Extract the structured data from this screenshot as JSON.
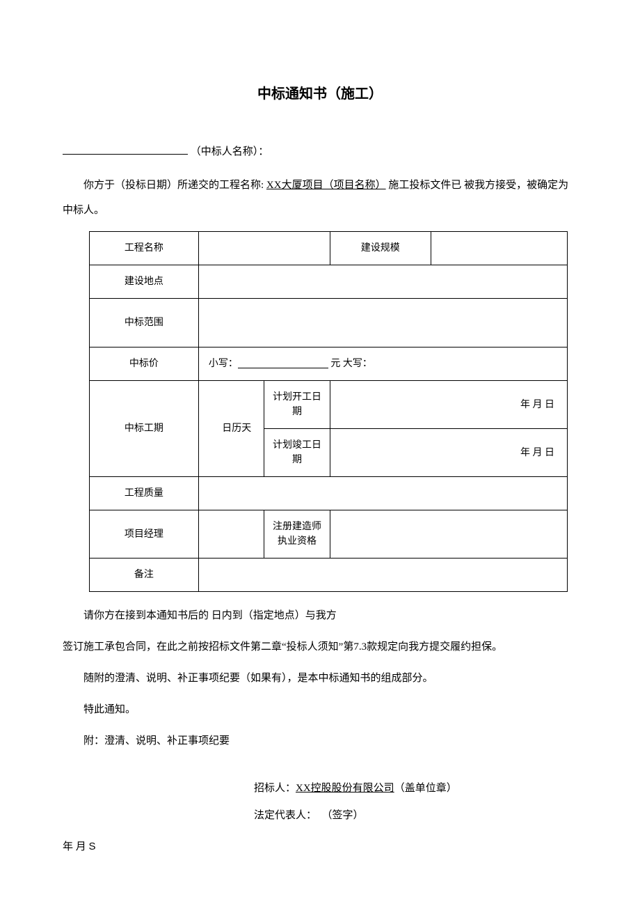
{
  "title": "中标通知书（施工）",
  "intro": {
    "bidder_label": "（中标人名称）：",
    "line1_pre": "你方于（投标日期）所递交的工程名称: ",
    "project_name": "XX大厦项目（项目名称）",
    "line1_post": " 施工投标文件已 被我方接受，被确定为中标人。"
  },
  "table": {
    "r1_label": "工程名称",
    "r1_scale_label": "建设规模",
    "r2_label": "建设地点",
    "r3_label": "中标范围",
    "r4_label": "中标价",
    "r4_small": "小写：",
    "r4_unit": "元 大写：",
    "r5_label": "中标工期",
    "r5_calendar": "日历天",
    "r5_start": "计划开工日期",
    "r5_end": "计划竣工日期",
    "r5_date": "年 月 日",
    "r6_label": "工程质量",
    "r7_label": "项目经理",
    "r7_qual": "注册建造师执业资格",
    "r8_label": "备注"
  },
  "closing": {
    "p1": "请你方在接到本通知书后的 日内到（指定地点）与我方",
    "p2": "签订施工承包合同，在此之前按招标文件第二章“投标人须知”第7.3款规定向我方提交履约担保。",
    "p3": "随附的澄清、说明、补正事项纪要（如果有），是本中标通知书的组成部分。",
    "p4": "特此通知。",
    "p5": "附：澄清、说明、补正事项纪要"
  },
  "sig": {
    "tenderer_label": "招标人：",
    "tenderer_name": "XX控股股份有限公司",
    "stamp": "（盖单位章）",
    "rep_label": "法定代表人：",
    "rep_sign": "（签字）",
    "date": "年 月 S"
  }
}
